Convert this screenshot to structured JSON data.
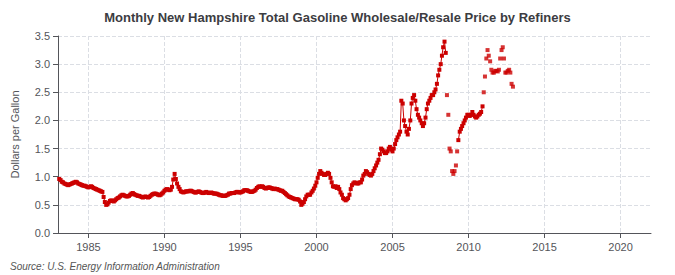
{
  "chart_data": {
    "type": "line",
    "title": "Monthly New Hampshire Total Gasoline Wholesale/Resale Price by Refiners",
    "ylabel": "Dollars per Gallon",
    "source": "Source: U.S. Energy Information Administration",
    "xlim": [
      1983,
      2022
    ],
    "ylim": [
      0.0,
      3.5
    ],
    "xticks": [
      1985,
      1990,
      1995,
      2000,
      2005,
      2010,
      2015,
      2020
    ],
    "yticks": [
      {
        "value": 0.0,
        "label": "0.0"
      },
      0.5,
      {
        "value": 1.0,
        "label": "1.0"
      },
      1.5,
      {
        "value": 2.0,
        "label": "2.0"
      },
      2.5,
      {
        "value": 3.0,
        "label": "3.0"
      },
      3.5
    ],
    "grid": true,
    "series": [
      {
        "type": "line",
        "color": "#cc0000",
        "marker": "square",
        "x": [
          1983.08,
          1983.17,
          1983.25,
          1983.33,
          1983.42,
          1983.5,
          1983.58,
          1983.67,
          1983.75,
          1983.83,
          1983.92,
          1984.0,
          1984.08,
          1984.17,
          1984.25,
          1984.33,
          1984.42,
          1984.5,
          1984.58,
          1984.67,
          1984.75,
          1984.83,
          1984.92,
          1985.0,
          1985.08,
          1985.17,
          1985.25,
          1985.33,
          1985.42,
          1985.5,
          1985.58,
          1985.67,
          1985.75,
          1985.83,
          1985.92,
          1986.0,
          1986.08,
          1986.17,
          1986.25,
          1986.33,
          1986.42,
          1986.5,
          1986.58,
          1986.67,
          1986.75,
          1986.83,
          1986.92,
          1987.0,
          1987.08,
          1987.17,
          1987.25,
          1987.33,
          1987.42,
          1987.5,
          1987.58,
          1987.67,
          1987.75,
          1987.83,
          1987.92,
          1988.0,
          1988.08,
          1988.17,
          1988.25,
          1988.33,
          1988.42,
          1988.5,
          1988.58,
          1988.67,
          1988.75,
          1988.83,
          1988.92,
          1989.0,
          1989.08,
          1989.17,
          1989.25,
          1989.33,
          1989.42,
          1989.5,
          1989.58,
          1989.67,
          1989.75,
          1989.83,
          1989.92,
          1990.0,
          1990.08,
          1990.17,
          1990.25,
          1990.33,
          1990.42,
          1990.5,
          1990.58,
          1990.67,
          1990.75,
          1990.83,
          1990.92,
          1991.0,
          1991.08,
          1991.17,
          1991.25,
          1991.33,
          1991.42,
          1991.5,
          1991.58,
          1991.67,
          1991.75,
          1991.83,
          1991.92,
          1992.0,
          1992.08,
          1992.17,
          1992.25,
          1992.33,
          1992.42,
          1992.5,
          1992.58,
          1992.67,
          1992.75,
          1992.83,
          1992.92,
          1993.0,
          1993.08,
          1993.17,
          1993.25,
          1993.33,
          1993.42,
          1993.5,
          1993.58,
          1993.67,
          1993.75,
          1993.83,
          1993.92,
          1994.0,
          1994.08,
          1994.17,
          1994.25,
          1994.33,
          1994.42,
          1994.5,
          1994.58,
          1994.67,
          1994.75,
          1994.83,
          1994.92,
          1995.0,
          1995.08,
          1995.17,
          1995.25,
          1995.33,
          1995.42,
          1995.5,
          1995.58,
          1995.67,
          1995.75,
          1995.83,
          1995.92,
          1996.0,
          1996.08,
          1996.17,
          1996.25,
          1996.33,
          1996.42,
          1996.5,
          1996.58,
          1996.67,
          1996.75,
          1996.83,
          1996.92,
          1997.0,
          1997.08,
          1997.17,
          1997.25,
          1997.33,
          1997.42,
          1997.5,
          1997.58,
          1997.67,
          1997.75,
          1997.83,
          1997.92,
          1998.0,
          1998.08,
          1998.17,
          1998.25,
          1998.33,
          1998.42,
          1998.5,
          1998.58,
          1998.67,
          1998.75,
          1998.83,
          1998.92,
          1999.0,
          1999.08,
          1999.17,
          1999.25,
          1999.33,
          1999.42,
          1999.5,
          1999.58,
          1999.67,
          1999.75,
          1999.83,
          1999.92,
          2000.0,
          2000.08,
          2000.17,
          2000.25,
          2000.33,
          2000.42,
          2000.5,
          2000.58,
          2000.67,
          2000.75,
          2000.83,
          2000.92,
          2001.0,
          2001.08,
          2001.17,
          2001.25,
          2001.33,
          2001.42,
          2001.5,
          2001.58,
          2001.67,
          2001.75,
          2001.83,
          2001.92,
          2002.0,
          2002.08,
          2002.17,
          2002.25,
          2002.33,
          2002.42,
          2002.5,
          2002.58,
          2002.67,
          2002.75,
          2002.83,
          2002.92,
          2003.0,
          2003.08,
          2003.17,
          2003.25,
          2003.33,
          2003.42,
          2003.5,
          2003.58,
          2003.67,
          2003.75,
          2003.83,
          2003.92,
          2004.0,
          2004.08,
          2004.17,
          2004.25,
          2004.33,
          2004.42,
          2004.5,
          2004.58,
          2004.67,
          2004.75,
          2004.83,
          2004.92,
          2005.0,
          2005.08,
          2005.17,
          2005.25,
          2005.33,
          2005.42,
          2005.5,
          2005.58,
          2005.67,
          2005.75,
          2005.83,
          2005.92,
          2006.0,
          2006.08,
          2006.17,
          2006.25,
          2006.33,
          2006.42,
          2006.5,
          2006.58,
          2006.67,
          2006.75,
          2006.83,
          2006.92,
          2007.0,
          2007.08,
          2007.17,
          2007.25,
          2007.33,
          2007.42,
          2007.5,
          2007.58,
          2007.67,
          2007.75,
          2007.83,
          2007.92,
          2008.0,
          2008.08,
          2008.17,
          2008.25,
          2008.33,
          2008.42,
          2008.5
        ],
        "values": [
          0.96,
          0.94,
          0.91,
          0.9,
          0.88,
          0.87,
          0.86,
          0.85,
          0.86,
          0.87,
          0.88,
          0.89,
          0.9,
          0.91,
          0.9,
          0.88,
          0.87,
          0.86,
          0.85,
          0.84,
          0.84,
          0.83,
          0.82,
          0.81,
          0.82,
          0.83,
          0.82,
          0.8,
          0.79,
          0.78,
          0.77,
          0.76,
          0.75,
          0.74,
          0.73,
          0.64,
          0.55,
          0.5,
          0.51,
          0.54,
          0.57,
          0.58,
          0.57,
          0.56,
          0.58,
          0.6,
          0.62,
          0.63,
          0.65,
          0.67,
          0.68,
          0.67,
          0.66,
          0.65,
          0.65,
          0.66,
          0.68,
          0.7,
          0.71,
          0.69,
          0.68,
          0.67,
          0.66,
          0.66,
          0.65,
          0.64,
          0.63,
          0.64,
          0.65,
          0.64,
          0.63,
          0.64,
          0.66,
          0.68,
          0.69,
          0.7,
          0.7,
          0.69,
          0.68,
          0.67,
          0.68,
          0.7,
          0.72,
          0.75,
          0.77,
          0.78,
          0.77,
          0.76,
          0.77,
          0.82,
          0.95,
          1.05,
          0.96,
          0.88,
          0.82,
          0.78,
          0.74,
          0.73,
          0.72,
          0.73,
          0.74,
          0.74,
          0.74,
          0.75,
          0.75,
          0.74,
          0.73,
          0.72,
          0.72,
          0.73,
          0.74,
          0.73,
          0.72,
          0.71,
          0.71,
          0.72,
          0.73,
          0.72,
          0.71,
          0.71,
          0.72,
          0.71,
          0.7,
          0.7,
          0.7,
          0.69,
          0.68,
          0.67,
          0.67,
          0.66,
          0.66,
          0.66,
          0.67,
          0.68,
          0.7,
          0.7,
          0.71,
          0.71,
          0.71,
          0.72,
          0.73,
          0.73,
          0.72,
          0.72,
          0.73,
          0.74,
          0.76,
          0.76,
          0.76,
          0.75,
          0.74,
          0.73,
          0.73,
          0.74,
          0.75,
          0.77,
          0.8,
          0.82,
          0.83,
          0.82,
          0.83,
          0.82,
          0.8,
          0.79,
          0.8,
          0.81,
          0.81,
          0.8,
          0.79,
          0.78,
          0.79,
          0.78,
          0.78,
          0.77,
          0.76,
          0.75,
          0.75,
          0.73,
          0.71,
          0.69,
          0.67,
          0.65,
          0.64,
          0.63,
          0.62,
          0.61,
          0.6,
          0.6,
          0.6,
          0.59,
          0.56,
          0.5,
          0.52,
          0.55,
          0.6,
          0.65,
          0.68,
          0.68,
          0.68,
          0.72,
          0.75,
          0.79,
          0.84,
          0.9,
          0.98,
          1.05,
          1.1,
          1.07,
          1.05,
          1.03,
          1.03,
          1.05,
          1.07,
          1.05,
          0.98,
          0.9,
          0.83,
          0.82,
          0.83,
          0.8,
          0.82,
          0.78,
          0.72,
          0.68,
          0.62,
          0.6,
          0.58,
          0.6,
          0.62,
          0.68,
          0.78,
          0.85,
          0.88,
          0.9,
          0.89,
          0.88,
          0.88,
          0.9,
          0.9,
          0.95,
          1.02,
          1.05,
          1.1,
          1.08,
          1.05,
          1.03,
          1.02,
          1.05,
          1.1,
          1.15,
          1.2,
          1.25,
          1.3,
          1.4,
          1.5,
          1.48,
          1.45,
          1.42,
          1.42,
          1.45,
          1.5,
          1.53,
          1.48,
          1.45,
          1.5,
          1.58,
          1.65,
          1.7,
          1.75,
          1.8,
          2.35,
          2.3,
          2.0,
          1.9,
          1.8,
          1.75,
          1.85,
          2.0,
          2.3,
          2.4,
          2.45,
          2.35,
          2.2,
          2.1,
          2.05,
          2.0,
          1.95,
          1.9,
          1.95,
          2.05,
          2.2,
          2.3,
          2.35,
          2.4,
          2.45,
          2.45,
          2.5,
          2.55,
          2.65,
          2.8,
          2.9,
          3.0,
          3.15,
          3.3,
          3.4,
          3.2
        ]
      },
      {
        "type": "line",
        "color": "#cc0000",
        "marker": "square",
        "x": [
          2009.33,
          2009.42,
          2009.5,
          2009.58,
          2009.67,
          2009.75,
          2009.83,
          2009.92,
          2010.0,
          2010.08,
          2010.17,
          2010.25,
          2010.33,
          2010.42,
          2010.5,
          2010.58,
          2010.67,
          2010.75,
          2010.83,
          2010.92
        ],
        "values": [
          1.65,
          1.8,
          1.85,
          1.9,
          1.95,
          2.0,
          2.05,
          2.1,
          2.1,
          2.08,
          2.1,
          2.15,
          2.1,
          2.07,
          2.05,
          2.07,
          2.1,
          2.12,
          2.15,
          2.25
        ]
      },
      {
        "type": "scatter",
        "color": "#cc0000",
        "marker": "square",
        "x": [
          2008.58,
          2008.67,
          2008.75,
          2008.83,
          2008.92,
          2009.0,
          2009.08,
          2009.17,
          2009.25
        ],
        "values": [
          2.45,
          2.1,
          1.5,
          1.45,
          1.1,
          1.05,
          1.1,
          1.2,
          1.45
        ]
      },
      {
        "type": "scatter",
        "color": "#cc0000",
        "marker": "square",
        "x": [
          2011.0,
          2011.08,
          2011.17,
          2011.25,
          2011.33,
          2011.42,
          2011.5,
          2011.58,
          2011.67,
          2011.75,
          2011.83,
          2011.92,
          2012.0,
          2012.08,
          2012.17,
          2012.25,
          2012.33,
          2012.42,
          2012.5,
          2012.58,
          2012.67,
          2012.75,
          2012.83,
          2012.92
        ],
        "values": [
          2.5,
          2.78,
          3.1,
          3.25,
          3.15,
          3.05,
          2.9,
          2.85,
          2.85,
          2.88,
          2.88,
          2.87,
          2.9,
          3.1,
          3.25,
          3.3,
          3.1,
          2.85,
          2.85,
          2.88,
          2.9,
          2.85,
          2.65,
          2.6
        ]
      }
    ]
  }
}
